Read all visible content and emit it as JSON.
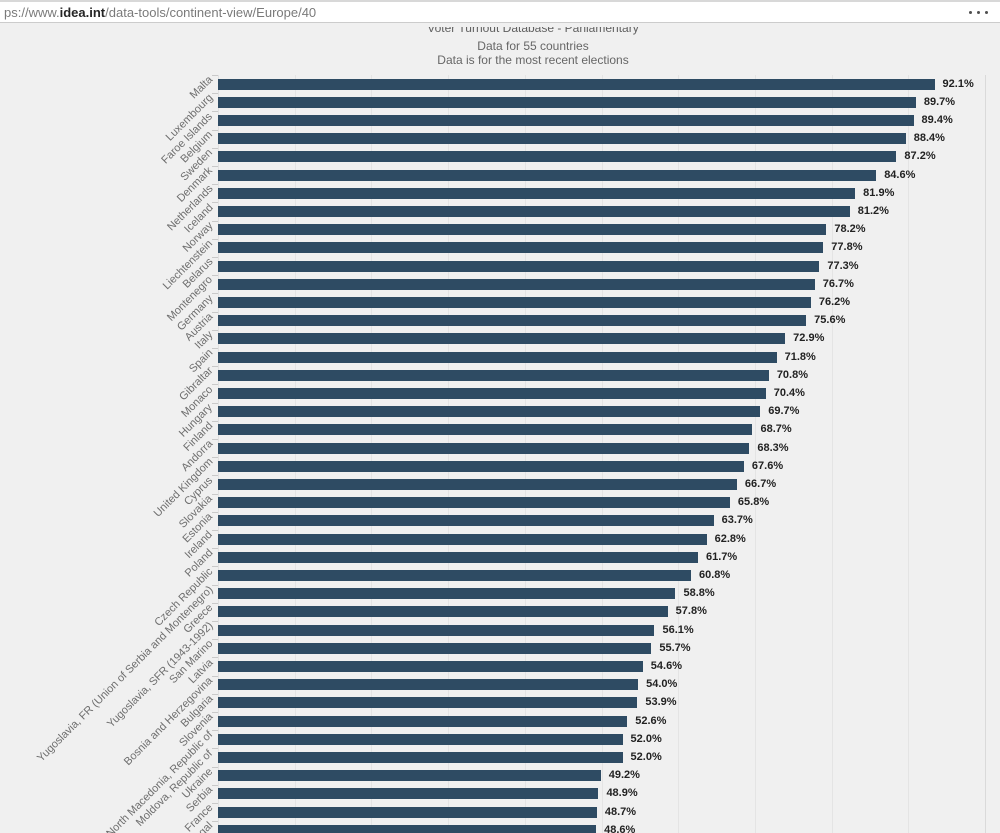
{
  "browser": {
    "url": {
      "prefix": "ps://www.",
      "domain": "idea.int",
      "path": "/data-tools/continent-view/Europe/40"
    },
    "menu_icon": "ellipsis-menu"
  },
  "chart_data": {
    "type": "bar",
    "orientation": "horizontal",
    "title": "Voter Turnout Database - Parliamentary",
    "subtitle": "Data for 55 countries",
    "note": "Data is for the most recent elections",
    "value_suffix": "%",
    "xlim": [
      0,
      100
    ],
    "grid": true,
    "legend": "none",
    "bar_color": "#2e4b63",
    "categories": [
      "Malta",
      "Luxembourg",
      "Faroe Islands",
      "Belgium",
      "Sweden",
      "Denmark",
      "Netherlands",
      "Iceland",
      "Norway",
      "Liechtenstein",
      "Belarus",
      "Montenegro",
      "Germany",
      "Austria",
      "Italy",
      "Spain",
      "Gibraltar",
      "Monaco",
      "Hungary",
      "Finland",
      "Andorra",
      "United Kingdom",
      "Cyprus",
      "Slovakia",
      "Estonia",
      "Ireland",
      "Poland",
      "Czech Republic",
      "Yugoslavia, FR (Union of Serbia and Montenegro)",
      "Greece",
      "Yugoslavia, SFR (1943-1992)",
      "San Marino",
      "Latvia",
      "Bosnia and Herzegovina",
      "Bulgaria",
      "Slovenia",
      "North Macedonia, Republic of",
      "Moldova, Republic of",
      "Ukraine",
      "Serbia",
      "France",
      "Portugal"
    ],
    "values": [
      92.1,
      89.7,
      89.4,
      88.4,
      87.2,
      84.6,
      81.9,
      81.2,
      78.2,
      77.8,
      77.3,
      76.7,
      76.2,
      75.6,
      72.9,
      71.8,
      70.8,
      70.4,
      69.7,
      68.7,
      68.3,
      67.6,
      66.7,
      65.8,
      63.7,
      62.8,
      61.7,
      60.8,
      58.8,
      57.8,
      56.1,
      55.7,
      54.6,
      54.0,
      53.9,
      52.6,
      52.0,
      52.0,
      49.2,
      48.9,
      48.7,
      48.6
    ]
  }
}
